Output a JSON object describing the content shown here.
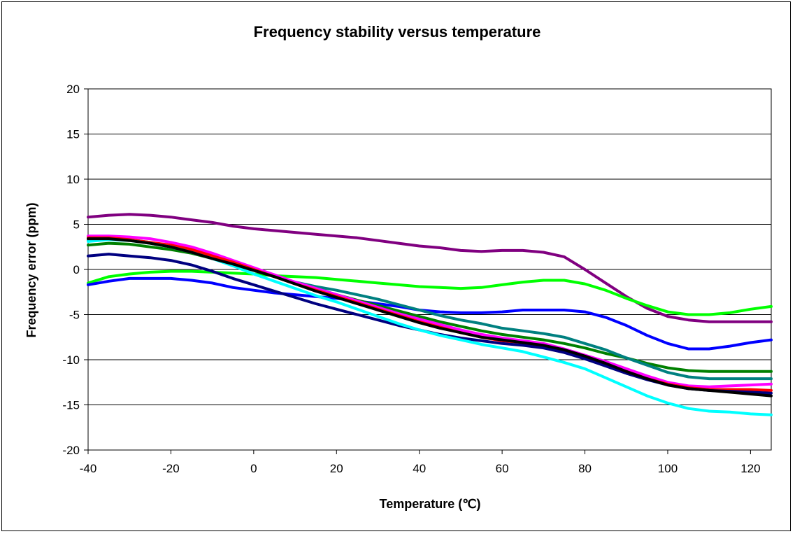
{
  "chart_data": {
    "type": "line",
    "title": "Frequency stability versus temperature",
    "xlabel": "Temperature (℃)",
    "ylabel": "Frequency error (ppm)",
    "xlim": [
      -40,
      125
    ],
    "ylim": [
      -20,
      20
    ],
    "x_ticks": [
      -40,
      -20,
      0,
      20,
      40,
      60,
      80,
      100,
      120
    ],
    "y_ticks": [
      -20,
      -15,
      -10,
      -5,
      0,
      5,
      10,
      15,
      20
    ],
    "grid": "horizontal",
    "legend": "none",
    "x": [
      -40,
      -35,
      -30,
      -25,
      -20,
      -15,
      -10,
      -5,
      0,
      5,
      10,
      15,
      20,
      25,
      30,
      35,
      40,
      45,
      50,
      55,
      60,
      65,
      70,
      75,
      80,
      85,
      90,
      95,
      100,
      105,
      110,
      115,
      120,
      125
    ],
    "series": [
      {
        "color": "#800080",
        "values": [
          5.8,
          6.0,
          6.1,
          6.0,
          5.8,
          5.5,
          5.2,
          4.8,
          4.5,
          4.3,
          4.1,
          3.9,
          3.7,
          3.5,
          3.2,
          2.9,
          2.6,
          2.4,
          2.1,
          2.0,
          2.1,
          2.1,
          1.9,
          1.4,
          0.0,
          -1.5,
          -3.0,
          -4.3,
          -5.2,
          -5.6,
          -5.8,
          -5.8,
          -5.8,
          -5.8
        ]
      },
      {
        "color": "#00ff00",
        "values": [
          -1.5,
          -0.8,
          -0.5,
          -0.3,
          -0.2,
          -0.2,
          -0.3,
          -0.4,
          -0.5,
          -0.7,
          -0.8,
          -0.9,
          -1.1,
          -1.3,
          -1.5,
          -1.7,
          -1.9,
          -2.0,
          -2.1,
          -2.0,
          -1.7,
          -1.4,
          -1.2,
          -1.2,
          -1.6,
          -2.3,
          -3.2,
          -4.0,
          -4.7,
          -5.0,
          -5.0,
          -4.8,
          -4.4,
          -4.1
        ]
      },
      {
        "color": "#0000ff",
        "values": [
          -1.7,
          -1.3,
          -1.0,
          -1.0,
          -1.0,
          -1.2,
          -1.5,
          -2.0,
          -2.3,
          -2.6,
          -2.8,
          -3.0,
          -3.2,
          -3.5,
          -3.8,
          -4.1,
          -4.5,
          -4.7,
          -4.8,
          -4.8,
          -4.7,
          -4.5,
          -4.5,
          -4.5,
          -4.7,
          -5.3,
          -6.2,
          -7.3,
          -8.2,
          -8.8,
          -8.8,
          -8.5,
          -8.1,
          -7.8
        ]
      },
      {
        "color": "#008000",
        "values": [
          2.7,
          2.9,
          2.8,
          2.5,
          2.2,
          1.8,
          1.2,
          0.5,
          -0.1,
          -0.8,
          -1.5,
          -2.1,
          -2.8,
          -3.4,
          -4.0,
          -4.6,
          -5.2,
          -5.8,
          -6.3,
          -6.8,
          -7.2,
          -7.5,
          -7.8,
          -8.2,
          -8.7,
          -9.3,
          -9.8,
          -10.4,
          -10.9,
          -11.2,
          -11.3,
          -11.3,
          -11.3,
          -11.3
        ]
      },
      {
        "color": "#008080",
        "values": [
          3.2,
          3.4,
          3.3,
          3.0,
          2.6,
          2.0,
          1.3,
          0.6,
          -0.1,
          -0.8,
          -1.4,
          -1.9,
          -2.3,
          -2.8,
          -3.3,
          -3.9,
          -4.5,
          -5.1,
          -5.6,
          -6.0,
          -6.5,
          -6.8,
          -7.1,
          -7.5,
          -8.2,
          -8.9,
          -9.8,
          -10.6,
          -11.4,
          -11.9,
          -12.1,
          -12.1,
          -12.1,
          -12.1
        ]
      },
      {
        "color": "#ff00ff",
        "values": [
          3.7,
          3.7,
          3.6,
          3.4,
          3.0,
          2.5,
          1.8,
          1.0,
          0.2,
          -0.6,
          -1.4,
          -2.1,
          -2.8,
          -3.5,
          -4.2,
          -4.9,
          -5.5,
          -6.1,
          -6.7,
          -7.2,
          -7.6,
          -7.9,
          -8.2,
          -8.8,
          -9.5,
          -10.2,
          -11.0,
          -11.8,
          -12.5,
          -12.9,
          -13.0,
          -12.9,
          -12.8,
          -12.7
        ]
      },
      {
        "color": "#ff0000",
        "values": [
          3.5,
          3.5,
          3.3,
          3.0,
          2.7,
          2.2,
          1.5,
          0.8,
          0.0,
          -0.8,
          -1.6,
          -2.3,
          -3.0,
          -3.7,
          -4.4,
          -5.1,
          -5.8,
          -6.4,
          -7.0,
          -7.5,
          -7.9,
          -8.1,
          -8.5,
          -9.0,
          -9.7,
          -10.5,
          -11.3,
          -12.1,
          -12.7,
          -13.1,
          -13.3,
          -13.3,
          -13.3,
          -13.4
        ]
      },
      {
        "color": "#000080",
        "values": [
          1.5,
          1.7,
          1.5,
          1.3,
          1.0,
          0.5,
          -0.2,
          -1.0,
          -1.7,
          -2.4,
          -3.1,
          -3.8,
          -4.4,
          -5.0,
          -5.6,
          -6.2,
          -6.7,
          -7.2,
          -7.6,
          -7.9,
          -8.2,
          -8.4,
          -8.7,
          -9.2,
          -9.9,
          -10.7,
          -11.5,
          -12.2,
          -12.8,
          -13.2,
          -13.4,
          -13.5,
          -13.6,
          -13.7
        ]
      },
      {
        "color": "#00ffff",
        "values": [
          3.1,
          3.3,
          3.2,
          2.9,
          2.5,
          1.9,
          1.2,
          0.4,
          -0.5,
          -1.3,
          -2.1,
          -2.9,
          -3.6,
          -4.4,
          -5.2,
          -6.0,
          -6.7,
          -7.3,
          -7.8,
          -8.3,
          -8.7,
          -9.1,
          -9.7,
          -10.3,
          -11.0,
          -12.0,
          -13.0,
          -14.0,
          -14.8,
          -15.4,
          -15.7,
          -15.8,
          -16.0,
          -16.1
        ]
      },
      {
        "color": "#000000",
        "values": [
          3.4,
          3.4,
          3.2,
          2.9,
          2.5,
          1.9,
          1.2,
          0.6,
          -0.1,
          -0.8,
          -1.6,
          -2.4,
          -3.1,
          -3.8,
          -4.5,
          -5.2,
          -5.9,
          -6.5,
          -7.0,
          -7.5,
          -7.8,
          -8.1,
          -8.4,
          -8.9,
          -9.6,
          -10.4,
          -11.3,
          -12.1,
          -12.8,
          -13.2,
          -13.4,
          -13.6,
          -13.8,
          -14.0
        ]
      }
    ]
  }
}
